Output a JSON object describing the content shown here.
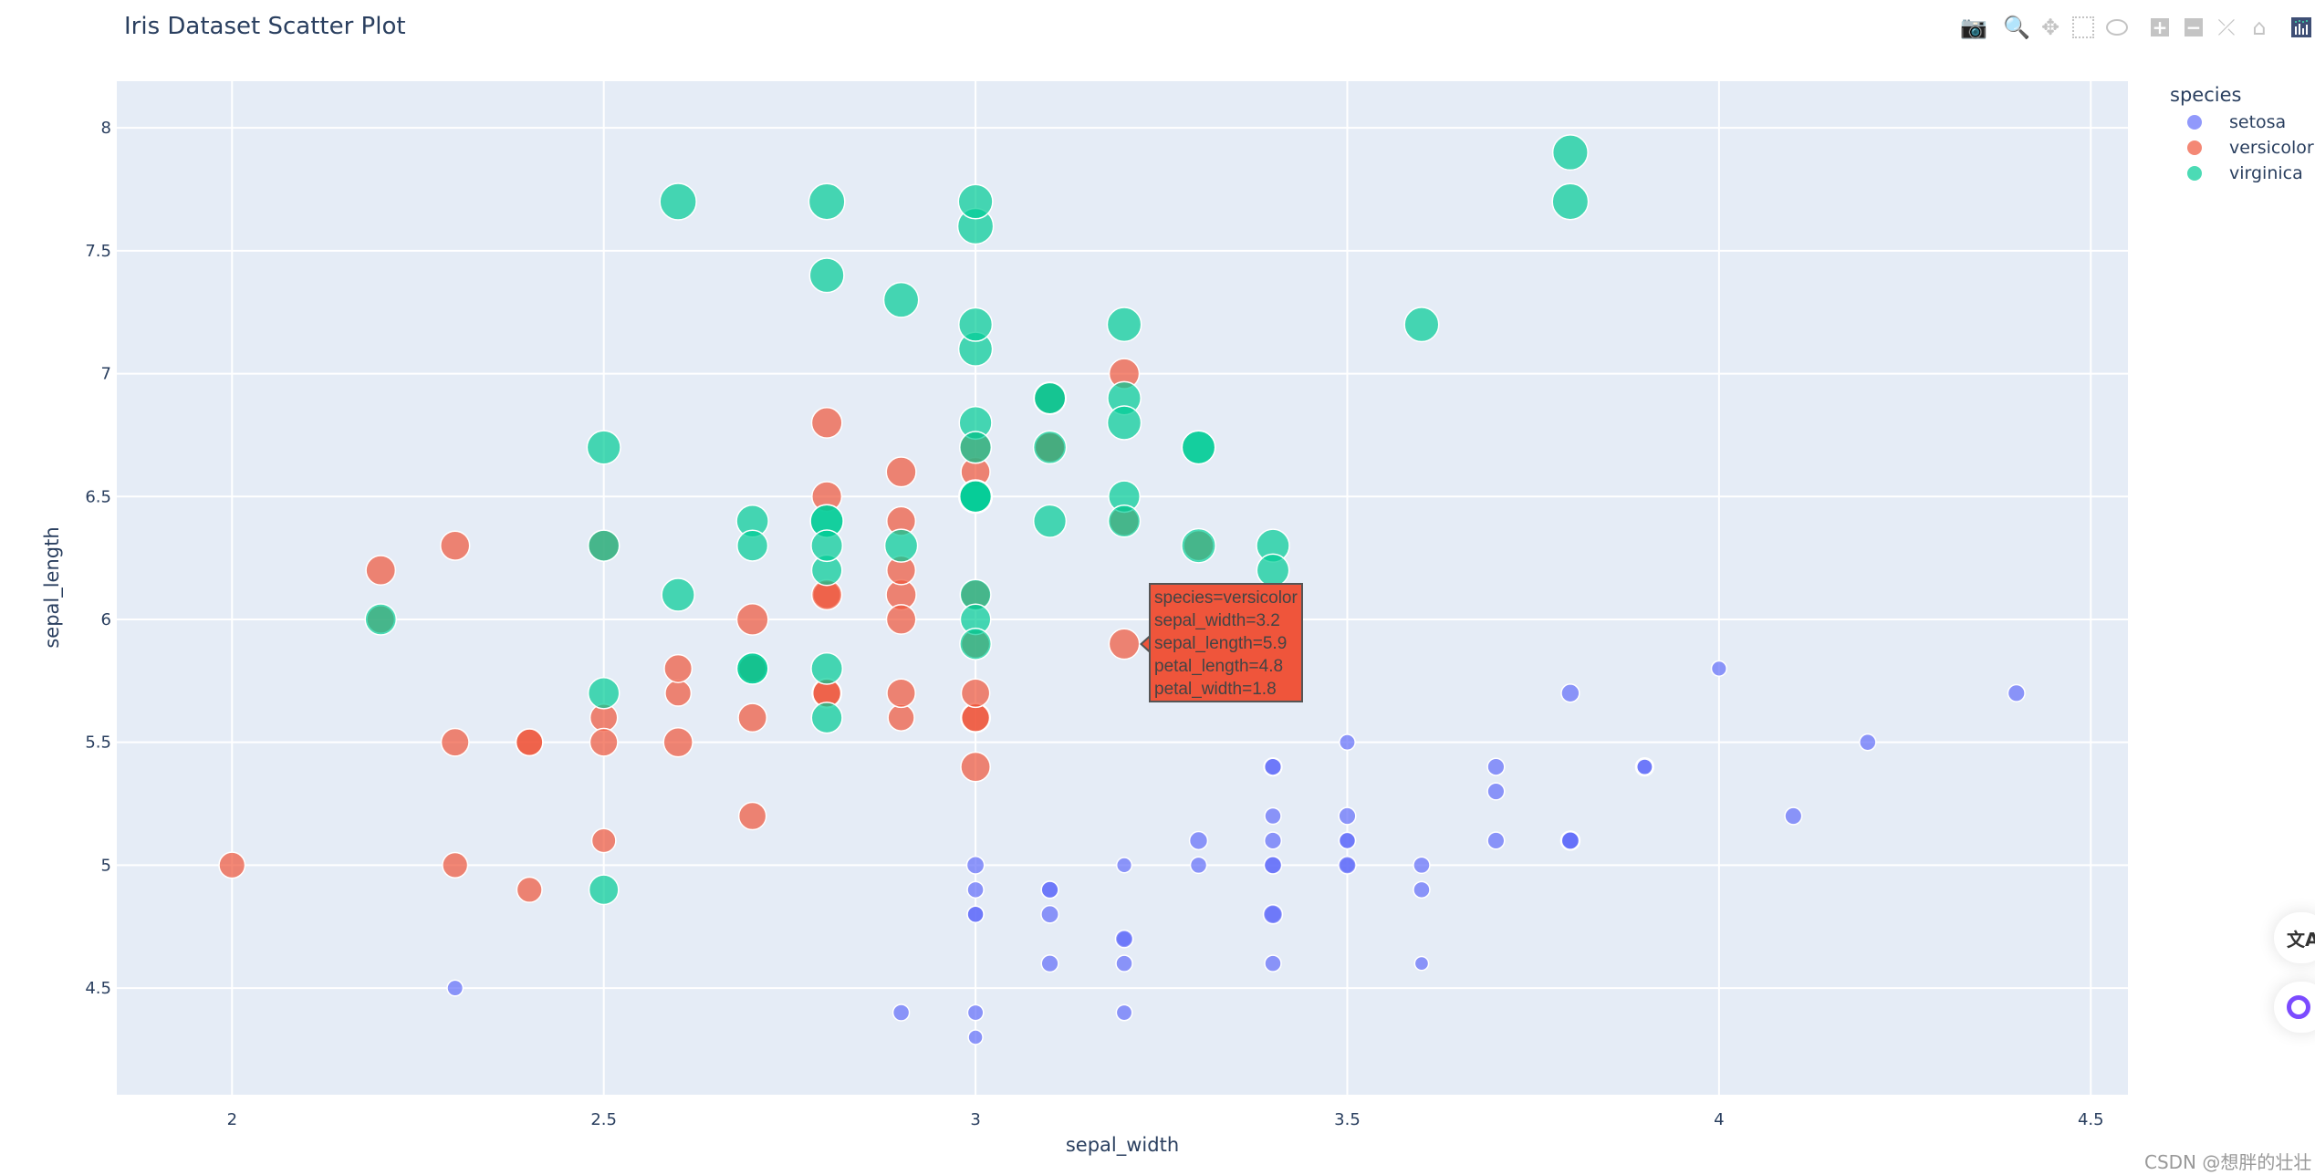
{
  "chart_data": {
    "type": "scatter",
    "title": "Iris Dataset Scatter Plot",
    "xlabel": "sepal_width",
    "ylabel": "sepal_length",
    "size_by": "petal_length",
    "xlim": [
      1.845,
      4.55
    ],
    "ylim": [
      4.066,
      8.19
    ],
    "xticks": [
      "2",
      "2.5",
      "3",
      "3.5",
      "4",
      "4.5"
    ],
    "xtick_values": [
      2,
      2.5,
      3,
      3.5,
      4,
      4.5
    ],
    "yticks": [
      "4.5",
      "5",
      "5.5",
      "6",
      "6.5",
      "7",
      "7.5",
      "8"
    ],
    "ytick_values": [
      4.5,
      5,
      5.5,
      6,
      6.5,
      7,
      7.5,
      8
    ],
    "grid": true,
    "background": "#e5ecf6",
    "legend": {
      "title": "species",
      "placement": "right"
    },
    "point_fields": [
      "sepal_width",
      "sepal_length",
      "petal_length",
      "petal_width"
    ],
    "series": [
      {
        "name": "setosa",
        "color": "#636efa",
        "points": [
          [
            3.5,
            5.1,
            1.4,
            0.2
          ],
          [
            3.0,
            4.9,
            1.4,
            0.2
          ],
          [
            3.2,
            4.7,
            1.3,
            0.2
          ],
          [
            3.1,
            4.6,
            1.5,
            0.2
          ],
          [
            3.6,
            5.0,
            1.4,
            0.2
          ],
          [
            3.9,
            5.4,
            1.7,
            0.4
          ],
          [
            3.4,
            4.6,
            1.4,
            0.3
          ],
          [
            3.4,
            5.0,
            1.5,
            0.2
          ],
          [
            2.9,
            4.4,
            1.4,
            0.2
          ],
          [
            3.1,
            4.9,
            1.5,
            0.1
          ],
          [
            3.7,
            5.4,
            1.5,
            0.2
          ],
          [
            3.4,
            4.8,
            1.6,
            0.2
          ],
          [
            3.0,
            4.8,
            1.4,
            0.1
          ],
          [
            3.0,
            4.3,
            1.1,
            0.1
          ],
          [
            4.0,
            5.8,
            1.2,
            0.2
          ],
          [
            4.4,
            5.7,
            1.5,
            0.4
          ],
          [
            3.9,
            5.4,
            1.3,
            0.4
          ],
          [
            3.5,
            5.1,
            1.4,
            0.3
          ],
          [
            3.8,
            5.7,
            1.7,
            0.3
          ],
          [
            3.8,
            5.1,
            1.5,
            0.3
          ],
          [
            3.4,
            5.4,
            1.7,
            0.2
          ],
          [
            3.7,
            5.1,
            1.5,
            0.4
          ],
          [
            3.6,
            4.6,
            1.0,
            0.2
          ],
          [
            3.3,
            5.1,
            1.7,
            0.5
          ],
          [
            3.4,
            4.8,
            1.9,
            0.2
          ],
          [
            3.0,
            5.0,
            1.6,
            0.2
          ],
          [
            3.4,
            5.0,
            1.6,
            0.4
          ],
          [
            3.5,
            5.2,
            1.5,
            0.2
          ],
          [
            3.4,
            5.2,
            1.4,
            0.2
          ],
          [
            3.2,
            4.7,
            1.6,
            0.2
          ],
          [
            3.1,
            4.8,
            1.6,
            0.2
          ],
          [
            3.4,
            5.4,
            1.5,
            0.4
          ],
          [
            4.1,
            5.2,
            1.5,
            0.1
          ],
          [
            4.2,
            5.5,
            1.4,
            0.2
          ],
          [
            3.1,
            4.9,
            1.5,
            0.2
          ],
          [
            3.2,
            5.0,
            1.2,
            0.2
          ],
          [
            3.5,
            5.5,
            1.3,
            0.2
          ],
          [
            3.6,
            4.9,
            1.4,
            0.1
          ],
          [
            3.0,
            4.4,
            1.3,
            0.2
          ],
          [
            3.4,
            5.1,
            1.5,
            0.2
          ],
          [
            3.5,
            5.0,
            1.3,
            0.3
          ],
          [
            2.3,
            4.5,
            1.3,
            0.3
          ],
          [
            3.2,
            4.4,
            1.3,
            0.2
          ],
          [
            3.5,
            5.0,
            1.6,
            0.6
          ],
          [
            3.8,
            5.1,
            1.9,
            0.4
          ],
          [
            3.0,
            4.8,
            1.4,
            0.3
          ],
          [
            3.8,
            5.1,
            1.6,
            0.2
          ],
          [
            3.2,
            4.6,
            1.4,
            0.2
          ],
          [
            3.7,
            5.3,
            1.5,
            0.2
          ],
          [
            3.3,
            5.0,
            1.4,
            0.2
          ]
        ]
      },
      {
        "name": "versicolor",
        "color": "#EF553B",
        "points": [
          [
            3.2,
            7.0,
            4.7,
            1.4
          ],
          [
            3.2,
            6.4,
            4.5,
            1.5
          ],
          [
            3.1,
            6.9,
            4.9,
            1.5
          ],
          [
            2.3,
            5.5,
            4.0,
            1.3
          ],
          [
            2.8,
            6.5,
            4.6,
            1.5
          ],
          [
            2.8,
            5.7,
            4.5,
            1.3
          ],
          [
            3.3,
            6.3,
            4.7,
            1.6
          ],
          [
            2.4,
            4.9,
            3.3,
            1.0
          ],
          [
            2.9,
            6.6,
            4.6,
            1.3
          ],
          [
            2.7,
            5.2,
            3.9,
            1.4
          ],
          [
            2.0,
            5.0,
            3.5,
            1.0
          ],
          [
            3.0,
            5.9,
            4.2,
            1.5
          ],
          [
            2.2,
            6.0,
            4.0,
            1.0
          ],
          [
            2.9,
            6.1,
            4.7,
            1.4
          ],
          [
            2.9,
            5.6,
            3.6,
            1.3
          ],
          [
            3.1,
            6.7,
            4.4,
            1.4
          ],
          [
            3.0,
            5.6,
            4.5,
            1.5
          ],
          [
            2.7,
            5.8,
            4.1,
            1.0
          ],
          [
            2.2,
            6.2,
            4.5,
            1.5
          ],
          [
            2.5,
            5.6,
            3.9,
            1.1
          ],
          [
            3.2,
            5.9,
            4.8,
            1.8
          ],
          [
            2.8,
            6.1,
            4.0,
            1.3
          ],
          [
            2.5,
            6.3,
            4.9,
            1.5
          ],
          [
            2.8,
            6.1,
            4.7,
            1.2
          ],
          [
            2.9,
            6.4,
            4.3,
            1.3
          ],
          [
            3.0,
            6.6,
            4.4,
            1.4
          ],
          [
            2.8,
            6.8,
            4.8,
            1.4
          ],
          [
            3.0,
            6.7,
            5.0,
            1.7
          ],
          [
            2.9,
            6.0,
            4.5,
            1.5
          ],
          [
            2.6,
            5.7,
            3.5,
            1.0
          ],
          [
            2.4,
            5.5,
            3.8,
            1.1
          ],
          [
            2.4,
            5.5,
            3.7,
            1.0
          ],
          [
            2.7,
            5.8,
            3.9,
            1.2
          ],
          [
            2.7,
            6.0,
            5.1,
            1.6
          ],
          [
            3.0,
            5.4,
            4.5,
            1.5
          ],
          [
            3.4,
            6.0,
            4.5,
            1.6
          ],
          [
            3.1,
            6.7,
            4.7,
            1.5
          ],
          [
            2.3,
            6.3,
            4.4,
            1.3
          ],
          [
            3.0,
            5.6,
            4.1,
            1.3
          ],
          [
            2.5,
            5.5,
            4.0,
            1.3
          ],
          [
            2.6,
            5.5,
            4.4,
            1.2
          ],
          [
            3.0,
            6.1,
            4.6,
            1.4
          ],
          [
            2.6,
            5.8,
            4.0,
            1.2
          ],
          [
            2.3,
            5.0,
            3.3,
            1.0
          ],
          [
            2.7,
            5.6,
            4.2,
            1.3
          ],
          [
            3.0,
            5.7,
            4.2,
            1.2
          ],
          [
            2.9,
            5.7,
            4.2,
            1.3
          ],
          [
            2.9,
            6.2,
            4.3,
            1.3
          ],
          [
            2.5,
            5.1,
            3.0,
            1.1
          ],
          [
            2.8,
            5.7,
            4.1,
            1.3
          ]
        ]
      },
      {
        "name": "virginica",
        "color": "#00cc96",
        "points": [
          [
            3.3,
            6.3,
            6.0,
            2.5
          ],
          [
            2.7,
            5.8,
            5.1,
            1.9
          ],
          [
            3.0,
            7.1,
            5.9,
            2.1
          ],
          [
            2.9,
            6.3,
            5.6,
            1.8
          ],
          [
            3.0,
            6.5,
            5.8,
            2.2
          ],
          [
            3.0,
            7.6,
            6.6,
            2.1
          ],
          [
            2.5,
            4.9,
            4.5,
            1.7
          ],
          [
            2.9,
            7.3,
            6.3,
            1.8
          ],
          [
            2.5,
            6.7,
            5.8,
            1.8
          ],
          [
            3.6,
            7.2,
            6.1,
            2.5
          ],
          [
            3.2,
            6.5,
            5.1,
            2.0
          ],
          [
            2.7,
            6.4,
            5.3,
            1.9
          ],
          [
            3.0,
            6.8,
            5.5,
            2.1
          ],
          [
            2.5,
            5.7,
            5.0,
            2.0
          ],
          [
            2.8,
            5.8,
            5.1,
            2.4
          ],
          [
            3.2,
            6.4,
            5.3,
            2.3
          ],
          [
            3.0,
            6.5,
            5.5,
            1.8
          ],
          [
            3.8,
            7.7,
            6.7,
            2.2
          ],
          [
            2.6,
            7.7,
            6.9,
            2.3
          ],
          [
            2.2,
            6.0,
            5.0,
            1.5
          ],
          [
            3.2,
            6.9,
            5.7,
            2.3
          ],
          [
            2.8,
            5.6,
            4.9,
            2.0
          ],
          [
            2.8,
            7.7,
            6.7,
            2.0
          ],
          [
            2.7,
            6.3,
            4.9,
            1.8
          ],
          [
            3.3,
            6.7,
            5.7,
            2.1
          ],
          [
            3.2,
            7.2,
            6.0,
            1.8
          ],
          [
            2.8,
            6.2,
            4.8,
            1.8
          ],
          [
            3.0,
            6.1,
            4.9,
            1.8
          ],
          [
            2.8,
            6.4,
            5.6,
            2.1
          ],
          [
            3.0,
            7.2,
            5.8,
            1.6
          ],
          [
            2.8,
            7.4,
            6.1,
            1.9
          ],
          [
            3.8,
            7.9,
            6.4,
            2.0
          ],
          [
            2.8,
            6.4,
            5.6,
            2.2
          ],
          [
            2.8,
            6.3,
            5.1,
            1.5
          ],
          [
            2.6,
            6.1,
            5.6,
            1.4
          ],
          [
            3.0,
            7.7,
            6.1,
            2.3
          ],
          [
            3.4,
            6.3,
            5.6,
            2.4
          ],
          [
            3.1,
            6.4,
            5.5,
            1.8
          ],
          [
            3.0,
            6.0,
            4.8,
            1.8
          ],
          [
            3.1,
            6.9,
            5.4,
            2.1
          ],
          [
            3.1,
            6.7,
            5.6,
            2.4
          ],
          [
            3.1,
            6.9,
            5.1,
            2.3
          ],
          [
            2.7,
            5.8,
            5.1,
            1.9
          ],
          [
            3.2,
            6.8,
            5.9,
            2.3
          ],
          [
            3.3,
            6.7,
            5.7,
            2.5
          ],
          [
            3.0,
            6.7,
            5.2,
            2.3
          ],
          [
            2.5,
            6.3,
            5.0,
            1.9
          ],
          [
            3.0,
            6.5,
            5.2,
            2.0
          ],
          [
            3.4,
            6.2,
            5.4,
            2.3
          ],
          [
            3.0,
            5.9,
            5.1,
            1.8
          ]
        ]
      }
    ]
  },
  "hover_tooltip": {
    "lines": [
      "species=versicolor",
      "sepal_width=3.2",
      "sepal_length=5.9",
      "petal_length=4.8",
      "petal_width=1.8"
    ]
  },
  "modebar": {
    "icons": [
      "camera-icon",
      "zoom-icon",
      "pan-icon",
      "box-select-icon",
      "lasso-select-icon",
      "zoom-in-icon",
      "zoom-out-icon",
      "autoscale-icon",
      "home-icon",
      "plotly-logo-icon"
    ],
    "active": "zoom-icon"
  },
  "floating_buttons": [
    "translate-icon",
    "assistant-icon"
  ],
  "watermark": "CSDN @想胖的壮壮"
}
